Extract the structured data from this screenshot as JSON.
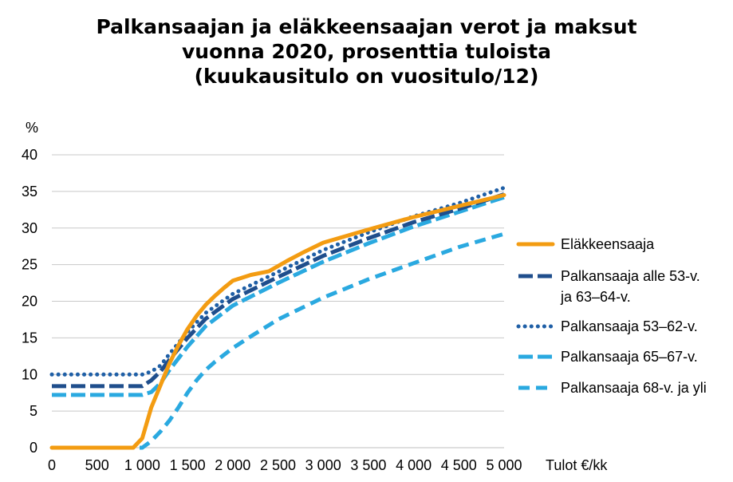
{
  "chart_data": {
    "type": "line",
    "title_lines": [
      "Palkansaajan ja eläkkeensaajan verot ja maksut",
      "vuonna 2020, prosenttia tuloista",
      "(kuukausitulo on vuositulo/12)"
    ],
    "ylabel": "%",
    "xlabel": "Tulot €/kk",
    "xlim": [
      0,
      5000
    ],
    "ylim": [
      0,
      40
    ],
    "x_ticks": [
      0,
      500,
      1000,
      1500,
      2000,
      2500,
      3000,
      3500,
      4000,
      4500,
      5000
    ],
    "x_tick_labels": [
      "0",
      "500",
      "1 000",
      "1 500",
      "2 000",
      "2 500",
      "3 000",
      "3 500",
      "4 000",
      "4 500",
      "5 000"
    ],
    "y_ticks": [
      0,
      5,
      10,
      15,
      20,
      25,
      30,
      35,
      40
    ],
    "y_tick_labels": [
      "0",
      "5",
      "10",
      "15",
      "20",
      "25",
      "30",
      "35",
      "40"
    ],
    "grid": true,
    "legend_position": "right",
    "series": [
      {
        "name": "Eläkkeensaaja",
        "color": "#F39C12",
        "style": "solid",
        "x": [
          0,
          500,
          900,
          1000,
          1100,
          1200,
          1300,
          1400,
          1500,
          1600,
          1700,
          1800,
          1900,
          2000,
          2200,
          2400,
          2600,
          2800,
          3000,
          3500,
          4000,
          4500,
          5000
        ],
        "y": [
          0,
          0,
          0,
          1.3,
          5.5,
          8.5,
          11.5,
          14,
          16.2,
          18,
          19.5,
          20.7,
          21.8,
          22.8,
          23.6,
          24.1,
          25.5,
          26.8,
          28.0,
          29.8,
          31.5,
          33.0,
          34.5
        ]
      },
      {
        "name": "Palkansaaja alle 53-v. ja 63–64-v.",
        "color": "#1F4E8C",
        "style": "long-dash",
        "x": [
          0,
          500,
          1000,
          1100,
          1200,
          1300,
          1500,
          1700,
          2000,
          2500,
          3000,
          3500,
          4000,
          4500,
          5000
        ],
        "y": [
          8.4,
          8.4,
          8.4,
          9.2,
          10.4,
          12.0,
          15.0,
          17.6,
          20.3,
          23.3,
          26.2,
          28.6,
          30.8,
          32.6,
          34.6
        ]
      },
      {
        "name": "Palkansaaja 53–62-v.",
        "color": "#1F5FA6",
        "style": "dotted",
        "x": [
          0,
          500,
          1000,
          1100,
          1200,
          1300,
          1500,
          1700,
          2000,
          2500,
          3000,
          3500,
          4000,
          4500,
          5000
        ],
        "y": [
          10.0,
          10.0,
          10.0,
          10.4,
          11.2,
          12.8,
          15.8,
          18.4,
          21.0,
          24.0,
          27.0,
          29.4,
          31.6,
          33.4,
          35.5
        ]
      },
      {
        "name": "Palkansaaja 65–67-v.",
        "color": "#2AA9E0",
        "style": "long-dash",
        "x": [
          0,
          500,
          1000,
          1100,
          1200,
          1300,
          1500,
          1700,
          2000,
          2500,
          3000,
          3500,
          4000,
          4500,
          5000
        ],
        "y": [
          7.2,
          7.2,
          7.2,
          7.6,
          8.8,
          10.6,
          13.8,
          16.6,
          19.4,
          22.5,
          25.4,
          27.9,
          30.2,
          32.2,
          34.2
        ]
      },
      {
        "name": "Palkansaaja 68-v. ja yli",
        "color": "#2AA9E0",
        "style": "medium-dash",
        "x": [
          0,
          500,
          1000,
          1100,
          1200,
          1300,
          1400,
          1500,
          1600,
          1700,
          1800,
          2000,
          2200,
          2500,
          3000,
          3500,
          4000,
          4500,
          5000
        ],
        "y": [
          0,
          0,
          0,
          0.9,
          2.2,
          3.7,
          5.5,
          7.5,
          9.2,
          10.6,
          11.7,
          13.6,
          15.2,
          17.5,
          20.5,
          23.0,
          25.2,
          27.4,
          29.2
        ]
      }
    ]
  }
}
